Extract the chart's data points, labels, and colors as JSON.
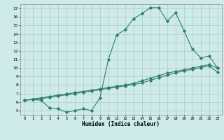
{
  "xlabel": "Humidex (Indice chaleur)",
  "bg_color": "#ceeaea",
  "line_color": "#2e7d6e",
  "grid_color": "#aacccc",
  "xlim": [
    -0.5,
    23.5
  ],
  "ylim": [
    4.5,
    17.5
  ],
  "xticks": [
    0,
    1,
    2,
    3,
    4,
    5,
    6,
    7,
    8,
    9,
    10,
    11,
    12,
    13,
    14,
    15,
    16,
    17,
    18,
    19,
    20,
    21,
    22,
    23
  ],
  "yticks": [
    5,
    6,
    7,
    8,
    9,
    10,
    11,
    12,
    13,
    14,
    15,
    16,
    17
  ],
  "line1_x": [
    0,
    1,
    2,
    3,
    4,
    5,
    6,
    7,
    8,
    9,
    10,
    11,
    12,
    13,
    14,
    15,
    16,
    17,
    18,
    19,
    20,
    21,
    22,
    23
  ],
  "line1_y": [
    6.2,
    6.3,
    6.2,
    5.3,
    5.2,
    4.8,
    5.0,
    5.2,
    5.0,
    6.5,
    11.0,
    13.9,
    14.5,
    15.8,
    16.4,
    17.1,
    17.1,
    15.5,
    16.5,
    14.4,
    12.2,
    11.2,
    11.4,
    10.0
  ],
  "line2_x": [
    0,
    1,
    2,
    3,
    4,
    5,
    6,
    7,
    8,
    9,
    10,
    11,
    12,
    13,
    14,
    15,
    16,
    17,
    18,
    19,
    20,
    21,
    22,
    23
  ],
  "line2_y": [
    6.2,
    6.35,
    6.5,
    6.65,
    6.8,
    6.95,
    7.1,
    7.25,
    7.4,
    7.55,
    7.7,
    7.85,
    8.0,
    8.2,
    8.5,
    8.8,
    9.1,
    9.4,
    9.6,
    9.8,
    10.0,
    10.2,
    10.4,
    10.0
  ],
  "line3_x": [
    0,
    1,
    2,
    3,
    4,
    5,
    6,
    7,
    8,
    9,
    10,
    11,
    12,
    13,
    14,
    15,
    16,
    17,
    18,
    19,
    20,
    21,
    22,
    23
  ],
  "line3_y": [
    6.2,
    6.3,
    6.4,
    6.55,
    6.7,
    6.85,
    7.0,
    7.15,
    7.3,
    7.45,
    7.6,
    7.75,
    7.9,
    8.05,
    8.25,
    8.55,
    8.85,
    9.15,
    9.45,
    9.65,
    9.85,
    10.05,
    10.25,
    9.5
  ]
}
